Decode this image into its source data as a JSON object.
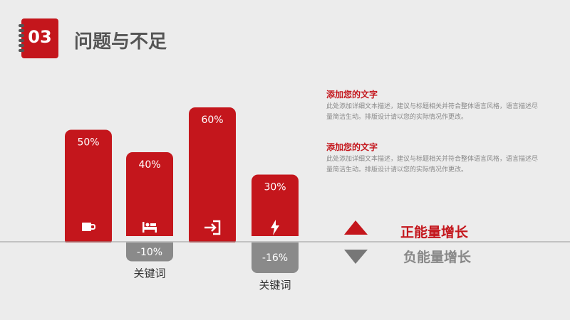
{
  "header": {
    "section_number": "03",
    "title": "问题与不足"
  },
  "chart_data": {
    "type": "bar",
    "bars": [
      {
        "value": 50,
        "label": "50%",
        "icon": "cup-icon"
      },
      {
        "value": 40,
        "label": "40%",
        "icon": "bed-icon"
      },
      {
        "value": 60,
        "label": "60%",
        "icon": "login-icon"
      },
      {
        "value": 30,
        "label": "30%",
        "icon": "lightning-icon"
      }
    ],
    "negatives": [
      {
        "bar_index": 1,
        "value": -10,
        "label": "-10%",
        "keyword": "关键词"
      },
      {
        "bar_index": 3,
        "value": -16,
        "label": "-16%",
        "keyword": "关键词"
      }
    ],
    "colors": {
      "positive": "#c4161c",
      "negative": "#8a8a8a"
    }
  },
  "descriptions": [
    {
      "title": "添加您的文字",
      "text": "此处添加详细文本描述，建议与标题相关并符合整体语言风格，语言描述尽量简洁生动。排版设计请以您的实际情况作更改。"
    },
    {
      "title": "添加您的文字",
      "text": "此处添加详细文本描述，建议与标题相关并符合整体语言风格，语言描述尽量简洁生动。排版设计请以您的实际情况作更改。"
    }
  ],
  "legend": {
    "positive": "正能量增长",
    "negative": "负能量增长"
  }
}
